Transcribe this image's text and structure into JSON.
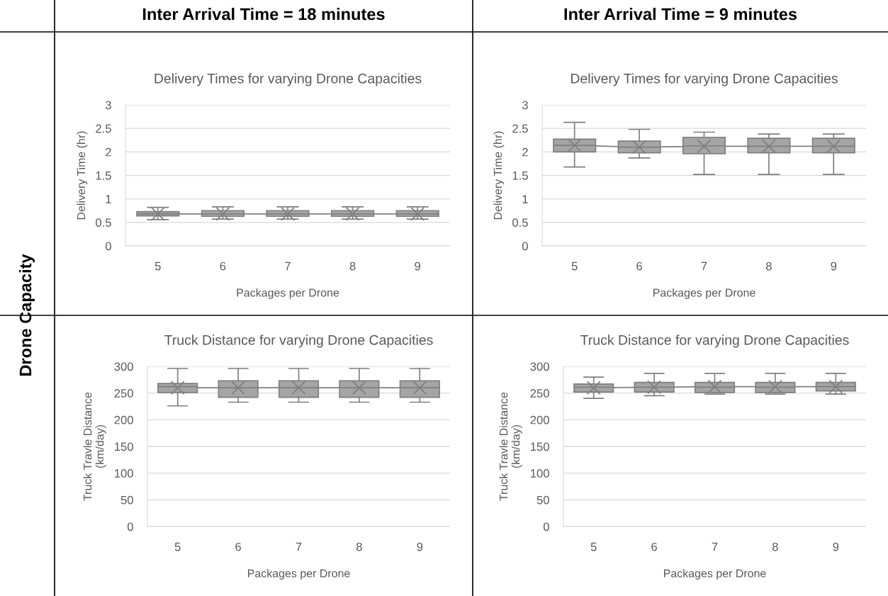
{
  "chart_data": [
    {
      "type": "box",
      "title": "Delivery Times for varying Drone Capacities",
      "xlabel": "Packages per Drone",
      "ylabel": "Delivery Time (hr)",
      "categories": [
        "5",
        "6",
        "7",
        "8",
        "9"
      ],
      "boxes": [
        {
          "low": 0.56,
          "q1": 0.64,
          "median": 0.68,
          "q3": 0.73,
          "high": 0.82,
          "mean": 0.68
        },
        {
          "low": 0.57,
          "q1": 0.63,
          "median": 0.68,
          "q3": 0.75,
          "high": 0.83,
          "mean": 0.68
        },
        {
          "low": 0.57,
          "q1": 0.63,
          "median": 0.68,
          "q3": 0.75,
          "high": 0.83,
          "mean": 0.68
        },
        {
          "low": 0.57,
          "q1": 0.63,
          "median": 0.68,
          "q3": 0.75,
          "high": 0.83,
          "mean": 0.68
        },
        {
          "low": 0.57,
          "q1": 0.63,
          "median": 0.68,
          "q3": 0.75,
          "high": 0.83,
          "mean": 0.68
        }
      ],
      "series": [
        {
          "type": "line",
          "color": "#7f7f7f",
          "values": [
            0.68,
            0.68,
            0.68,
            0.68,
            0.68
          ]
        }
      ],
      "ylim": [
        0,
        3
      ],
      "yticks": [
        0,
        0.5,
        1,
        1.5,
        2,
        2.5,
        3
      ],
      "grid": "y",
      "annotations": [
        "Inter Arrival Time = 18 minutes",
        "Drone Capacity"
      ]
    },
    {
      "type": "box",
      "title": "Delivery Times for varying Drone Capacities",
      "xlabel": "Packages per Drone",
      "ylabel": "Delivery Time (hr)",
      "categories": [
        "5",
        "6",
        "7",
        "8",
        "9"
      ],
      "boxes": [
        {
          "low": 1.68,
          "q1": 2.0,
          "median": 2.14,
          "q3": 2.27,
          "high": 2.63,
          "mean": 2.14
        },
        {
          "low": 1.87,
          "q1": 1.98,
          "median": 2.1,
          "q3": 2.23,
          "high": 2.48,
          "mean": 2.1
        },
        {
          "low": 1.52,
          "q1": 1.96,
          "median": 2.13,
          "q3": 2.31,
          "high": 2.42,
          "mean": 2.12
        },
        {
          "low": 1.52,
          "q1": 1.98,
          "median": 2.12,
          "q3": 2.29,
          "high": 2.38,
          "mean": 2.12
        },
        {
          "low": 1.52,
          "q1": 1.98,
          "median": 2.12,
          "q3": 2.29,
          "high": 2.38,
          "mean": 2.12
        }
      ],
      "series": [
        {
          "type": "line",
          "color": "#7f7f7f",
          "values": [
            2.14,
            2.1,
            2.12,
            2.12,
            2.12
          ]
        }
      ],
      "ylim": [
        0,
        3
      ],
      "yticks": [
        0,
        0.5,
        1,
        1.5,
        2,
        2.5,
        3
      ],
      "grid": "y",
      "annotations": [
        "Inter Arrival Time = 9 minutes"
      ]
    },
    {
      "type": "box",
      "title": "Truck Distance for varying Drone Capacities",
      "xlabel": "Packages per Drone",
      "ylabel": "Truck Travle Distance\n(km/day)",
      "categories": [
        "5",
        "6",
        "7",
        "8",
        "9"
      ],
      "boxes": [
        {
          "low": 226,
          "q1": 251,
          "median": 262,
          "q3": 268,
          "high": 296,
          "mean": 260
        },
        {
          "low": 233,
          "q1": 242,
          "median": 260,
          "q3": 273,
          "high": 296,
          "mean": 260
        },
        {
          "low": 233,
          "q1": 242,
          "median": 260,
          "q3": 273,
          "high": 296,
          "mean": 260
        },
        {
          "low": 233,
          "q1": 242,
          "median": 260,
          "q3": 273,
          "high": 296,
          "mean": 260
        },
        {
          "low": 233,
          "q1": 242,
          "median": 260,
          "q3": 273,
          "high": 296,
          "mean": 260
        }
      ],
      "series": [
        {
          "type": "line",
          "color": "#7f7f7f",
          "values": [
            260,
            260,
            260,
            260,
            260
          ]
        }
      ],
      "ylim": [
        0,
        300
      ],
      "yticks": [
        0,
        50,
        100,
        150,
        200,
        250,
        300
      ],
      "grid": "y"
    },
    {
      "type": "box",
      "title": "Truck Distance for varying Drone Capacities",
      "xlabel": "Packages per Drone",
      "ylabel": "Truck Travle Distance\n(km/day)",
      "categories": [
        "5",
        "6",
        "7",
        "8",
        "9"
      ],
      "boxes": [
        {
          "low": 240,
          "q1": 252,
          "median": 261,
          "q3": 267,
          "high": 280,
          "mean": 260
        },
        {
          "low": 245,
          "q1": 252,
          "median": 261,
          "q3": 270,
          "high": 287,
          "mean": 261
        },
        {
          "low": 248,
          "q1": 251,
          "median": 261,
          "q3": 270,
          "high": 287,
          "mean": 262
        },
        {
          "low": 248,
          "q1": 251,
          "median": 261,
          "q3": 270,
          "high": 287,
          "mean": 262
        },
        {
          "low": 248,
          "q1": 254,
          "median": 262,
          "q3": 270,
          "high": 287,
          "mean": 262
        }
      ],
      "series": [
        {
          "type": "line",
          "color": "#7f7f7f",
          "values": [
            260,
            261,
            262,
            262,
            262
          ]
        }
      ],
      "ylim": [
        0,
        300
      ],
      "yticks": [
        0,
        50,
        100,
        150,
        200,
        250,
        300
      ],
      "grid": "y"
    }
  ]
}
